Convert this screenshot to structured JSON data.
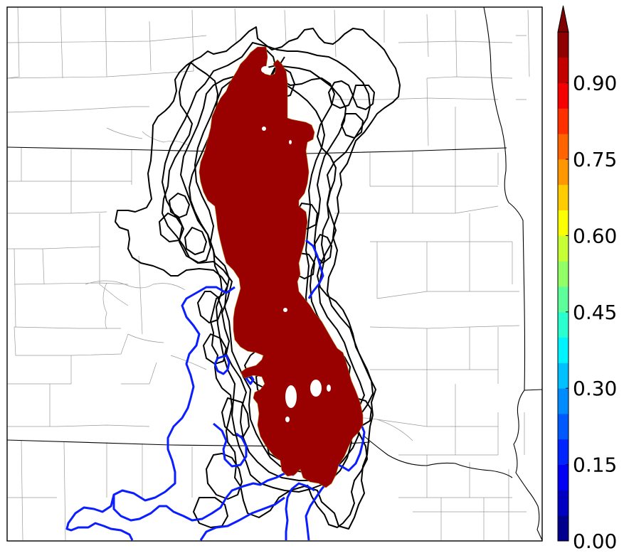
{
  "map": {
    "colors": {
      "probability_fill": "#990000",
      "member_contour": "#000000",
      "observed_contour": "#0a1eff",
      "state_border": "#000000",
      "county_border": "#9a9a9a"
    }
  },
  "colorbar": {
    "extend": "max",
    "ticks": [
      "0.00",
      "0.15",
      "0.30",
      "0.45",
      "0.60",
      "0.75",
      "0.90"
    ],
    "levels": [
      0.0,
      0.05,
      0.1,
      0.15,
      0.2,
      0.25,
      0.3,
      0.35,
      0.4,
      0.45,
      0.5,
      0.55,
      0.6,
      0.65,
      0.7,
      0.75,
      0.8,
      0.85,
      0.9,
      0.95,
      1.0
    ],
    "colors": [
      "#00008f",
      "#0000c2",
      "#0000f5",
      "#0024ff",
      "#0058ff",
      "#008cff",
      "#00c0ff",
      "#00f4ff",
      "#2affcf",
      "#5eff9b",
      "#92ff67",
      "#c6ff33",
      "#fbff00",
      "#ffcc00",
      "#ff9800",
      "#ff6400",
      "#ff3000",
      "#f50000",
      "#c20000",
      "#8f0000"
    ],
    "extend_color": "#7f0000"
  }
}
